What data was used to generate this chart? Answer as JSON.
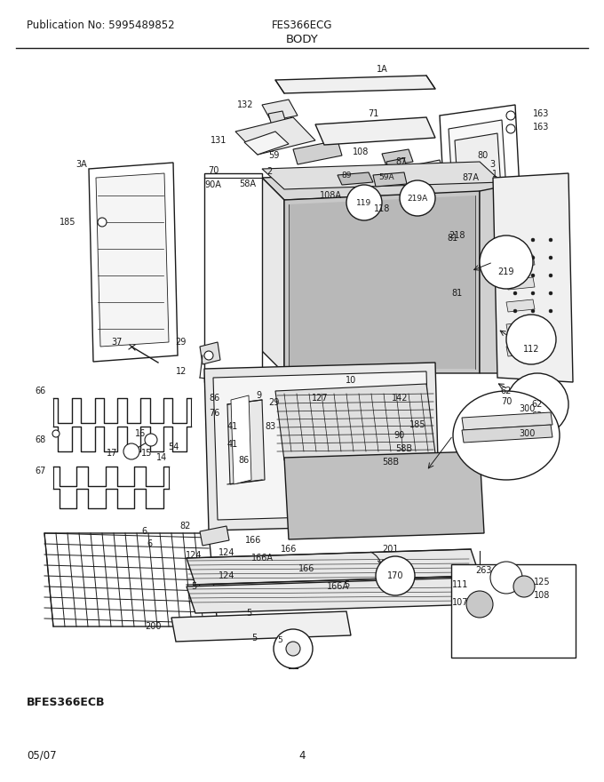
{
  "pub_no": "Publication No: 5995489852",
  "model": "FES366ECG",
  "section": "BODY",
  "date": "05/07",
  "page": "4",
  "bfes_label": "BFES366ECB",
  "bg_color": "#ffffff",
  "line_color": "#000000",
  "text_color": "#1a1a1a",
  "header_fontsize": 8.5,
  "title_fontsize": 9.5
}
